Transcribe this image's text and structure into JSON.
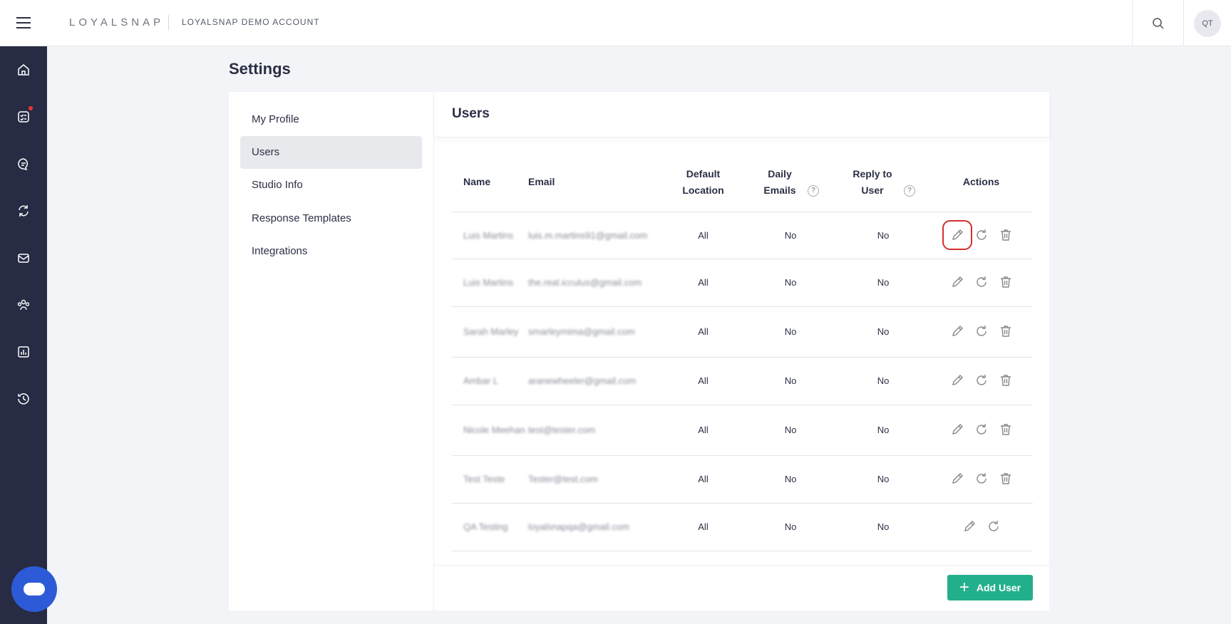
{
  "header": {
    "logo": "LOYALSNAP",
    "account": "LOYALSNAP DEMO ACCOUNT",
    "avatar": "QT"
  },
  "sidebar": {
    "icons": [
      "home-icon",
      "tasks-icon",
      "messages-icon",
      "sync-icon",
      "mail-icon",
      "team-icon",
      "reports-icon",
      "history-icon"
    ],
    "notification_color": "#e53935"
  },
  "page": {
    "title": "Settings"
  },
  "settings_nav": [
    {
      "label": "My Profile"
    },
    {
      "label": "Users",
      "active": true
    },
    {
      "label": "Studio Info"
    },
    {
      "label": "Response Templates"
    },
    {
      "label": "Integrations"
    }
  ],
  "users": {
    "title": "Users",
    "columns": {
      "name": "Name",
      "email": "Email",
      "default_location": "Default Location",
      "daily_emails": "Daily Emails",
      "reply_to_user": "Reply to User",
      "actions": "Actions"
    },
    "rows": [
      {
        "name": "Luis Martins",
        "email": "luis.m.martins91@gmail.com",
        "location": "All",
        "daily": "No",
        "reply": "No",
        "deletable": true
      },
      {
        "name": "Luis Martins",
        "email": "the.real.icculus@gmail.com",
        "location": "All",
        "daily": "No",
        "reply": "No",
        "deletable": true
      },
      {
        "name": "Sarah Marley",
        "email": "smarleymima@gmail.com",
        "location": "All",
        "daily": "No",
        "reply": "No",
        "deletable": true
      },
      {
        "name": "Ambar L",
        "email": "aranewheeler@gmail.com",
        "location": "All",
        "daily": "No",
        "reply": "No",
        "deletable": true
      },
      {
        "name": "Nicole Meehan",
        "email": "test@tester.com",
        "location": "All",
        "daily": "No",
        "reply": "No",
        "deletable": true
      },
      {
        "name": "Test Teste",
        "email": "Tester@test.com",
        "location": "All",
        "daily": "No",
        "reply": "No",
        "deletable": true
      },
      {
        "name": "QA Testing",
        "email": "loyalsnapqa@gmail.com",
        "location": "All",
        "daily": "No",
        "reply": "No",
        "deletable": false
      }
    ],
    "add_button": "Add User",
    "accent": "#22b08c"
  }
}
